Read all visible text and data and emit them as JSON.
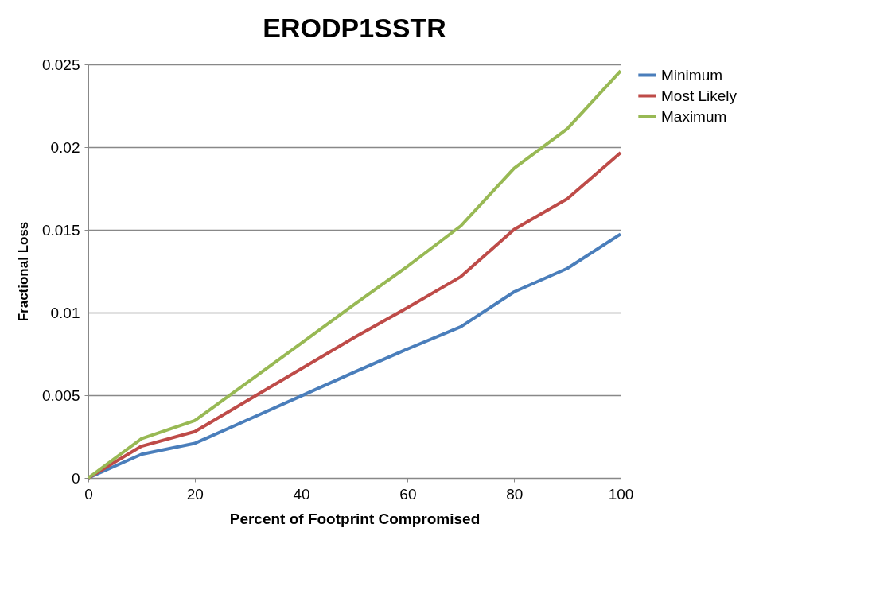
{
  "chart_data": {
    "type": "line",
    "title": "ERODP1SSTR",
    "xlabel": "Percent of Footprint Compromised",
    "ylabel": "Fractional Loss",
    "x": [
      0,
      10,
      20,
      30,
      40,
      50,
      60,
      70,
      80,
      90,
      100
    ],
    "series": [
      {
        "name": "Minimum",
        "color": "#4a7ebb",
        "values": [
          0,
          0.00143,
          0.00209,
          0.00352,
          0.00496,
          0.0064,
          0.0078,
          0.00914,
          0.01125,
          0.01267,
          0.01474
        ]
      },
      {
        "name": "Most Likely",
        "color": "#be4b48",
        "values": [
          0,
          0.00192,
          0.0028,
          0.0047,
          0.0066,
          0.0085,
          0.0103,
          0.01217,
          0.01502,
          0.01688,
          0.01966
        ]
      },
      {
        "name": "Maximum",
        "color": "#98b954",
        "values": [
          0,
          0.00237,
          0.00347,
          0.0058,
          0.00814,
          0.0105,
          0.0128,
          0.01524,
          0.01872,
          0.02111,
          0.02461
        ]
      }
    ],
    "xlim": [
      0,
      100
    ],
    "xticks": [
      0,
      20,
      40,
      60,
      80,
      100
    ],
    "ylim": [
      0,
      0.025
    ],
    "yticks": [
      0,
      0.005,
      0.01,
      0.015,
      0.02,
      0.025
    ],
    "grid": "y",
    "legend": "right",
    "marker": "none",
    "line_style": "solid"
  }
}
